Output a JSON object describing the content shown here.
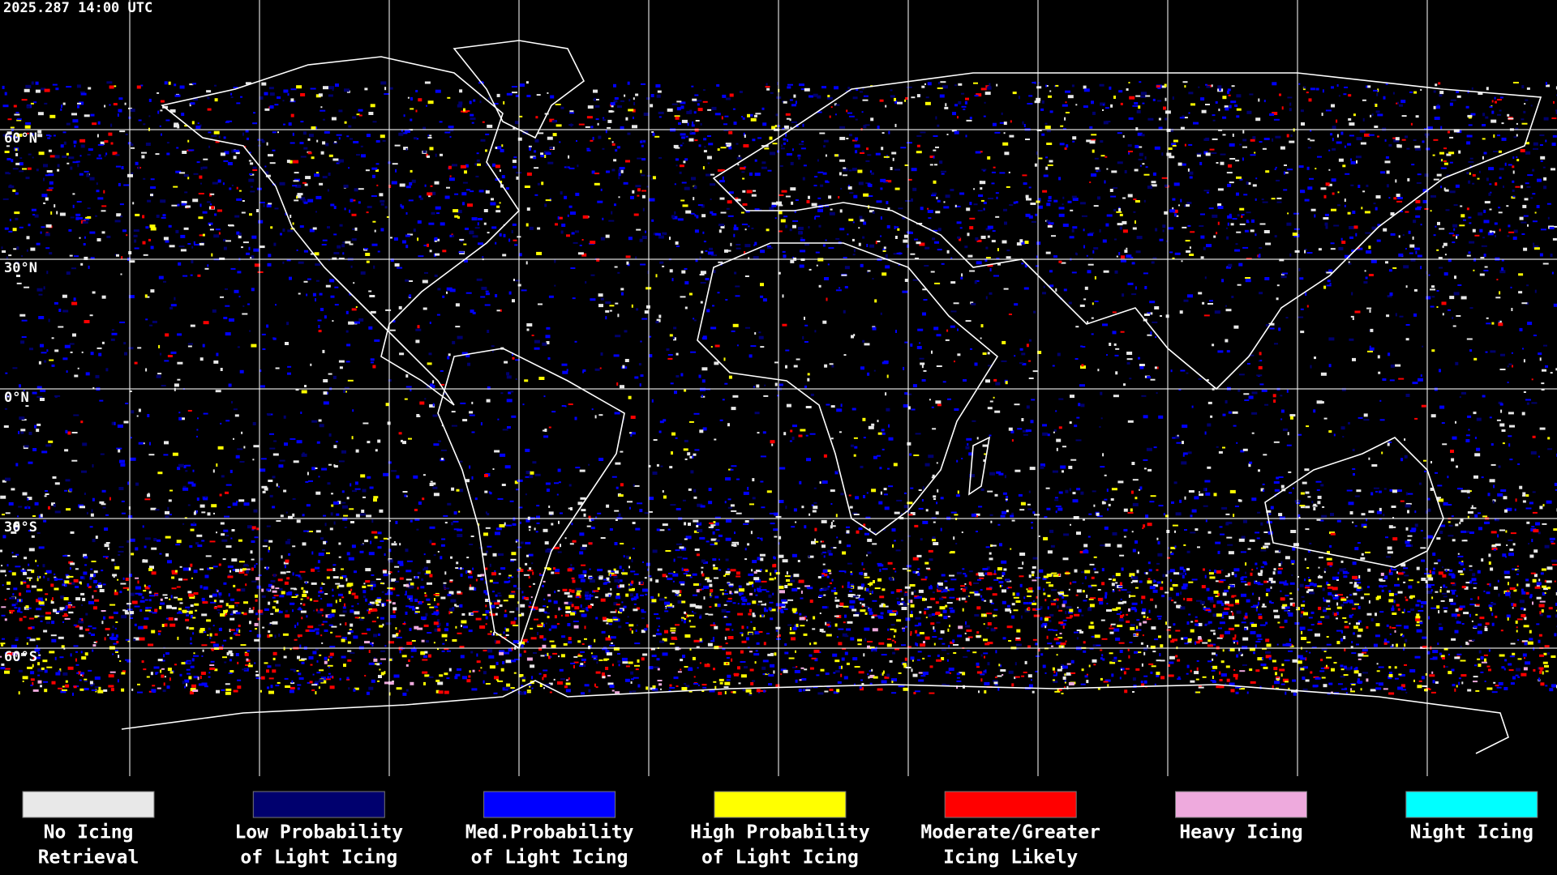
{
  "header": {
    "timestamp": "2025.287 14:00 UTC"
  },
  "map": {
    "lat_labels": [
      "60°N",
      "30°N",
      "0°N",
      "30°S",
      "60°S"
    ]
  },
  "legend": {
    "items": [
      {
        "color": "#e8e8e8",
        "lines": [
          "No Icing",
          "Retrieval"
        ]
      },
      {
        "color": "#00006e",
        "lines": [
          "Low Probability",
          "of Light Icing"
        ]
      },
      {
        "color": "#0000ff",
        "lines": [
          "Med.Probability",
          "of Light Icing"
        ]
      },
      {
        "color": "#ffff00",
        "lines": [
          "High Probability",
          "of Light Icing"
        ]
      },
      {
        "color": "#ff0000",
        "lines": [
          "Moderate/Greater",
          "Icing Likely"
        ]
      },
      {
        "color": "#eeaadd",
        "lines": [
          "Heavy Icing"
        ]
      },
      {
        "color": "#00ffff",
        "lines": [
          "Night Icing"
        ]
      }
    ]
  }
}
